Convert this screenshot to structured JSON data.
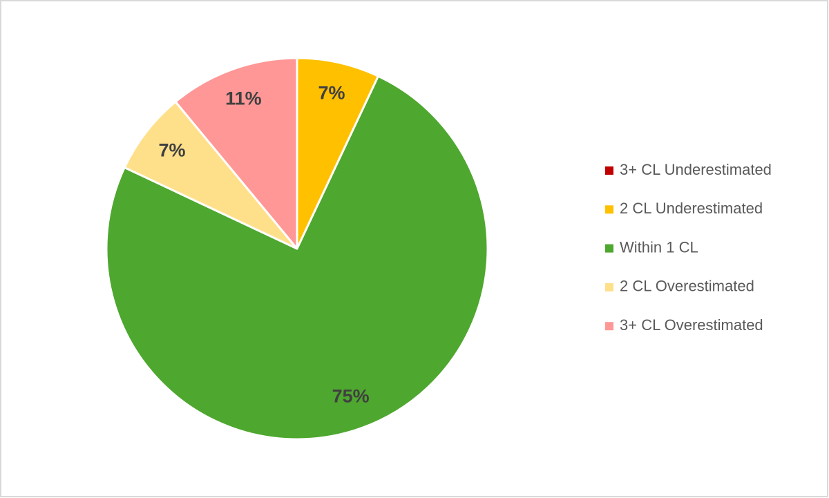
{
  "chart_data": {
    "type": "pie",
    "categories": [
      "3+ CL Underestimated",
      "2 CL Underestimated",
      "Within 1 CL",
      "2 CL Overestimated",
      "3+ CL Overestimated"
    ],
    "values": [
      0,
      7,
      75,
      7,
      11
    ],
    "value_labels": [
      null,
      "7%",
      "75%",
      "7%",
      "11%"
    ],
    "colors": [
      "#c00000",
      "#ffc000",
      "#4ea72e",
      "#ffe08a",
      "#ff9797"
    ],
    "legend": "right"
  }
}
